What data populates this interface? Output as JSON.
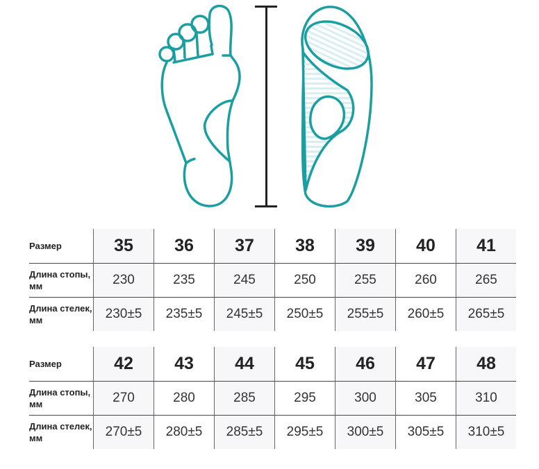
{
  "colors": {
    "accent": "#1a9ea2",
    "shade": "#f7f6f9"
  },
  "tables": [
    {
      "row_labels": [
        "Размер",
        "Длина стопы, мм",
        "Длина стелек, мм"
      ],
      "sizes": [
        "35",
        "36",
        "37",
        "38",
        "39",
        "40",
        "41"
      ],
      "foot": [
        "230",
        "235",
        "245",
        "250",
        "255",
        "260",
        "265"
      ],
      "insole": [
        "230±5",
        "235±5",
        "245±5",
        "250±5",
        "255±5",
        "260±5",
        "265±5"
      ]
    },
    {
      "row_labels": [
        "Размер",
        "Длина стопы, мм",
        "Длина стелек, мм"
      ],
      "sizes": [
        "42",
        "43",
        "44",
        "45",
        "46",
        "47",
        "48"
      ],
      "foot": [
        "270",
        "280",
        "285",
        "295",
        "300",
        "305",
        "310"
      ],
      "insole": [
        "270±5",
        "280±5",
        "285±5",
        "295±5",
        "300±5",
        "305±5",
        "310±5"
      ]
    }
  ]
}
